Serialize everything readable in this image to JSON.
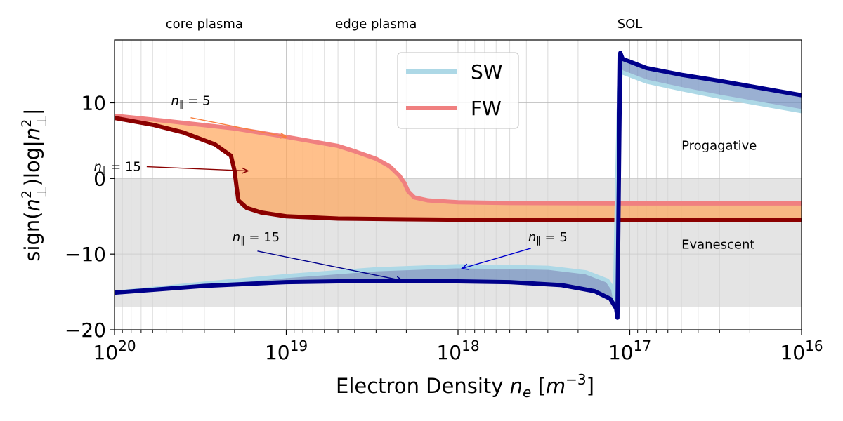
{
  "chart_data": {
    "type": "line",
    "xlabel": "Electron Density n_e [m^-3]",
    "ylabel": "sign(n⊥²) log|n⊥²|",
    "x_scale": "log",
    "x_inverted": true,
    "xlim": [
      1e+20,
      1e+16
    ],
    "ylim": [
      -20,
      18.3
    ],
    "x_tick_labels": [
      {
        "value": 1e+20,
        "label": "20"
      },
      {
        "value": 1e+19,
        "label": "19"
      },
      {
        "value": 1e+18,
        "label": "18"
      },
      {
        "value": 1e+17,
        "label": "17"
      },
      {
        "value": 1e+16,
        "label": "16"
      }
    ],
    "y_ticks": [
      10,
      0,
      -10,
      -20
    ],
    "y_tick_labels": [
      "10",
      "0",
      "−10",
      "−20"
    ],
    "grid": true,
    "evanescent_band": [
      -17,
      0
    ],
    "top_labels": [
      {
        "text": "core plasma",
        "x": 3e+19
      },
      {
        "text": "edge plasma",
        "x": 3e+18
      },
      {
        "text": "SOL",
        "x": 1e+17
      }
    ],
    "region_labels": [
      {
        "text": "Progagative",
        "x": 5e+16,
        "y": 3.8
      },
      {
        "text": "Evanescent",
        "x": 5e+16,
        "y": -9.3
      }
    ],
    "legend": {
      "position": "top-center",
      "entries": [
        {
          "label": "SW",
          "color": "#add8e6"
        },
        {
          "label": "FW",
          "color": "#f08080"
        }
      ]
    },
    "series": [
      {
        "name": "FW",
        "label": "n∥ = 5",
        "color": "#f08080",
        "width": 6,
        "points": [
          [
            1e+20,
            8.3
          ],
          [
            5e+19,
            7.6
          ],
          [
            2e+19,
            6.6
          ],
          [
            1e+19,
            5.5
          ],
          [
            5e+18,
            4.3
          ],
          [
            4e+18,
            3.6
          ],
          [
            3e+18,
            2.6
          ],
          [
            2.5e+18,
            1.6
          ],
          [
            2.2e+18,
            0.4
          ],
          [
            2.05e+18,
            -0.6
          ],
          [
            1.95e+18,
            -1.7
          ],
          [
            1.8e+18,
            -2.5
          ],
          [
            1.5e+18,
            -2.9
          ],
          [
            1e+18,
            -3.15
          ],
          [
            5e+17,
            -3.25
          ],
          [
            1e+17,
            -3.3
          ],
          [
            1e+16,
            -3.3
          ]
        ]
      },
      {
        "name": "FW",
        "label": "n∥ = 15",
        "color": "#8b0000",
        "width": 6,
        "points": [
          [
            1e+20,
            8.0
          ],
          [
            6e+19,
            7.1
          ],
          [
            4e+19,
            6.1
          ],
          [
            2.6e+19,
            4.5
          ],
          [
            2.1e+19,
            3.0
          ],
          [
            2e+19,
            1.0
          ],
          [
            1.95e+19,
            -1.0
          ],
          [
            1.9e+19,
            -2.9
          ],
          [
            1.7e+19,
            -3.9
          ],
          [
            1.4e+19,
            -4.5
          ],
          [
            1e+19,
            -5.0
          ],
          [
            5e+18,
            -5.3
          ],
          [
            2e+18,
            -5.4
          ],
          [
            1e+18,
            -5.45
          ],
          [
            1e+17,
            -5.45
          ],
          [
            1e+16,
            -5.45
          ]
        ]
      },
      {
        "name": "SW",
        "label": "n∥ = 5",
        "color": "#add8e6",
        "width": 6,
        "points": [
          [
            1e+20,
            -15.1
          ],
          [
            3e+19,
            -13.9
          ],
          [
            1e+19,
            -12.9
          ],
          [
            3e+18,
            -12.0
          ],
          [
            1e+18,
            -11.6
          ],
          [
            3e+17,
            -11.8
          ],
          [
            1.8e+17,
            -12.4
          ],
          [
            1.35e+17,
            -13.5
          ],
          [
            1.25e+17,
            -14.6
          ],
          [
            1.22e+17,
            -16.0
          ],
          [
            1.19e+17,
            -3.0
          ],
          [
            1.16e+17,
            9.0
          ],
          [
            1.13e+17,
            14.2
          ],
          [
            1.1e+17,
            14.0
          ],
          [
            8e+16,
            12.8
          ],
          [
            5e+16,
            11.8
          ],
          [
            3e+16,
            10.8
          ],
          [
            1e+16,
            8.9
          ]
        ]
      },
      {
        "name": "SW",
        "label": "n∥ = 15",
        "color": "#00008b",
        "width": 6,
        "points": [
          [
            1e+20,
            -15.1
          ],
          [
            3e+19,
            -14.2
          ],
          [
            1e+19,
            -13.7
          ],
          [
            5e+18,
            -13.6
          ],
          [
            1e+18,
            -13.6
          ],
          [
            5e+17,
            -13.7
          ],
          [
            2.5e+17,
            -14.1
          ],
          [
            1.6e+17,
            -14.9
          ],
          [
            1.3e+17,
            -15.9
          ],
          [
            1.2e+17,
            -17.2
          ],
          [
            1.18e+17,
            -18.4
          ],
          [
            1.165e+17,
            -6.0
          ],
          [
            1.15e+17,
            6.0
          ],
          [
            1.135e+17,
            16.6
          ],
          [
            1.1e+17,
            15.8
          ],
          [
            8e+16,
            14.6
          ],
          [
            5e+16,
            13.7
          ],
          [
            3e+16,
            12.9
          ],
          [
            1e+16,
            11.0
          ]
        ]
      }
    ],
    "fills": [
      {
        "between": [
          0,
          1
        ],
        "color": "#ffa55a",
        "opacity": 0.7
      },
      {
        "between": [
          2,
          3
        ],
        "color": "#6f8fbf",
        "opacity": 0.7
      }
    ],
    "annotations": [
      {
        "text": "n∥ = 5",
        "text_x": 3.6e+19,
        "text_y": 9.7,
        "arrow_to": [
          1e+19,
          5.5
        ],
        "color": "#f97f3d"
      },
      {
        "text": "n∥ = 15",
        "text_x": 7e+19,
        "text_y": 1.0,
        "arrow_to": [
          1.67e+19,
          1.0
        ],
        "color": "#8b0000"
      },
      {
        "text": "n∥ = 15",
        "text_x": 1.5e+19,
        "text_y": -8.3,
        "arrow_to": [
          2.1e+18,
          -13.5
        ],
        "color": "#00008b"
      },
      {
        "text": "n∥ = 5",
        "text_x": 3e+17,
        "text_y": -8.3,
        "arrow_to": [
          9.5e+17,
          -11.9
        ],
        "color": "#0000cd"
      }
    ]
  }
}
